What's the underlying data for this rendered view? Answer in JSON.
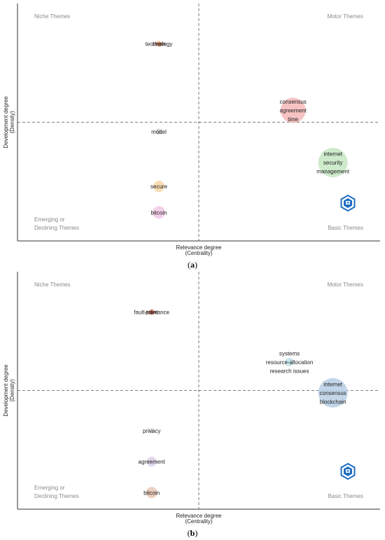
{
  "chart_data": [
    {
      "type": "scatter",
      "panel_label": "a",
      "xlabel": "Relevance degree",
      "xlabel_sub": "(Centrality)",
      "ylabel": "Development degree",
      "ylabel_sub": "(Density)",
      "quadrants": {
        "top_left": "Niche Themes",
        "top_right": "Motor Themes",
        "bottom_left": [
          "Emerging or",
          "Declining Themes"
        ],
        "bottom_right": "Basic Themes"
      },
      "xlim": [
        0,
        1
      ],
      "ylim": [
        0,
        1
      ],
      "x_split": 0.5,
      "y_split": 0.5,
      "points": [
        {
          "labels": [
            "technology",
            "chain"
          ],
          "x": 0.39,
          "y": 0.83,
          "size": 4,
          "color": "#f3a47a"
        },
        {
          "labels": [
            "consensus",
            "agreement",
            "time"
          ],
          "x": 0.76,
          "y": 0.55,
          "size": 18,
          "color": "#f4b8b8"
        },
        {
          "labels": [
            "model"
          ],
          "x": 0.39,
          "y": 0.46,
          "size": 4,
          "color": "#c8c8c8"
        },
        {
          "labels": [
            "internet",
            "security",
            "management"
          ],
          "x": 0.87,
          "y": 0.33,
          "size": 21,
          "color": "#c6e8c2"
        },
        {
          "labels": [
            "secure"
          ],
          "x": 0.39,
          "y": 0.23,
          "size": 8,
          "color": "#f6d7a7"
        },
        {
          "labels": [
            "bitcoin"
          ],
          "x": 0.39,
          "y": 0.12,
          "size": 9,
          "color": "#f2c7e6"
        }
      ],
      "logo_icon": "bibliometrix-logo-icon"
    },
    {
      "type": "scatter",
      "panel_label": "b",
      "xlabel": "Relevance degree",
      "xlabel_sub": "(Centrality)",
      "ylabel": "Development degree",
      "ylabel_sub": "(Density)",
      "quadrants": {
        "top_left": "Niche Themes",
        "top_right": "Motor Themes",
        "bottom_left": [
          "Emerging or",
          "Declining Themes"
        ],
        "bottom_right": "Basic Themes"
      },
      "xlim": [
        0,
        1
      ],
      "ylim": [
        0,
        1
      ],
      "x_split": 0.5,
      "y_split": 0.5,
      "points": [
        {
          "labels": [
            "fault-tolerance",
            "point"
          ],
          "x": 0.37,
          "y": 0.83,
          "size": 4,
          "color": "#f08f6a"
        },
        {
          "labels": [
            "systems",
            "resource-allocation",
            "research issues"
          ],
          "x": 0.75,
          "y": 0.62,
          "size": 6,
          "color": "#bfe3ea"
        },
        {
          "labels": [
            "internet",
            "consensus",
            "blockchain"
          ],
          "x": 0.87,
          "y": 0.49,
          "size": 21,
          "color": "#b9cfe5"
        },
        {
          "labels": [
            "privacy"
          ],
          "x": 0.37,
          "y": 0.33,
          "size": 4,
          "color": "#dcdcdc"
        },
        {
          "labels": [
            "agreement"
          ],
          "x": 0.37,
          "y": 0.2,
          "size": 7,
          "color": "#dcd0ea"
        },
        {
          "labels": [
            "bitcoin"
          ],
          "x": 0.37,
          "y": 0.07,
          "size": 8,
          "color": "#e9c5b3"
        }
      ],
      "logo_icon": "bibliometrix-logo-icon"
    }
  ],
  "captions": [
    "(a)",
    "(b)"
  ],
  "colors": {
    "axis": "#333333",
    "quadrant_text": "#8a8a8a",
    "label_text": "#222222",
    "logo": "#1e6ec2"
  }
}
